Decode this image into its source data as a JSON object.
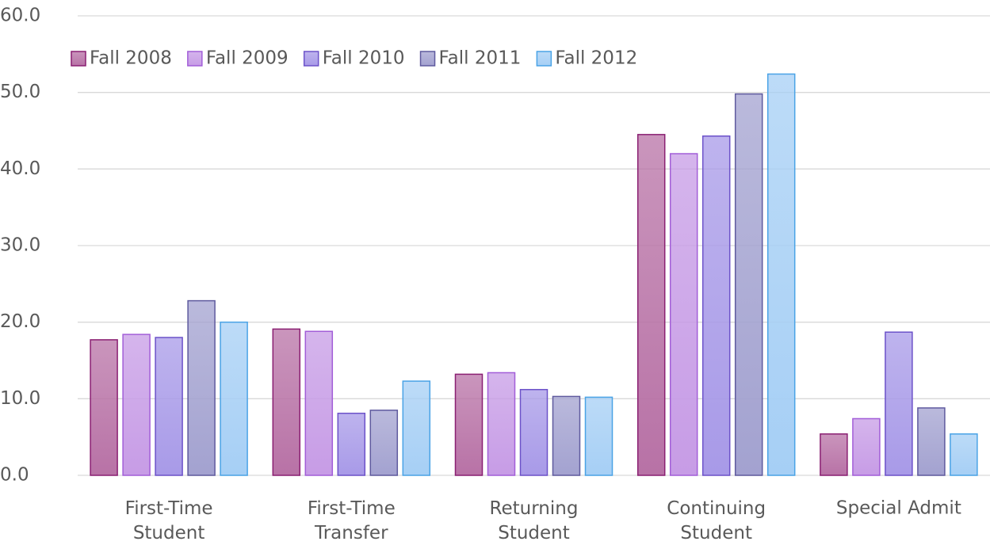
{
  "chart_data": {
    "type": "bar",
    "categories": [
      "First-Time\nStudent",
      "First-Time\nTransfer",
      "Returning\nStudent",
      "Continuing\nStudent",
      "Special Admit"
    ],
    "series": [
      {
        "name": "Fall 2008",
        "color": "#b872a6",
        "border": "#8a1f72",
        "values": [
          17.7,
          19.1,
          13.2,
          44.5,
          5.4
        ]
      },
      {
        "name": "Fall 2009",
        "color": "#c79ce6",
        "border": "#a25ed8",
        "values": [
          18.4,
          18.8,
          13.4,
          42.0,
          7.4
        ]
      },
      {
        "name": "Fall 2010",
        "color": "#a89ae8",
        "border": "#6c52c9",
        "values": [
          18.0,
          8.1,
          11.2,
          44.3,
          18.7
        ]
      },
      {
        "name": "Fall 2011",
        "color": "#a3a2d0",
        "border": "#5f5a9e",
        "values": [
          22.8,
          8.5,
          10.3,
          49.8,
          8.8
        ]
      },
      {
        "name": "Fall 2012",
        "color": "#a6cff5",
        "border": "#4aa3e6",
        "values": [
          20.0,
          12.3,
          10.2,
          52.4,
          5.4
        ]
      }
    ],
    "ylim": [
      0,
      60
    ],
    "yticks": [
      {
        "value": 0,
        "label": "0.0"
      },
      {
        "value": 10,
        "label": "10.0"
      },
      {
        "value": 20,
        "label": "20.0"
      },
      {
        "value": 30,
        "label": "30.0"
      },
      {
        "value": 40,
        "label": "40.0"
      },
      {
        "value": 50,
        "label": "50.0"
      },
      {
        "value": 60,
        "label": "60.0"
      }
    ],
    "grid": true,
    "legend": "top-left"
  }
}
